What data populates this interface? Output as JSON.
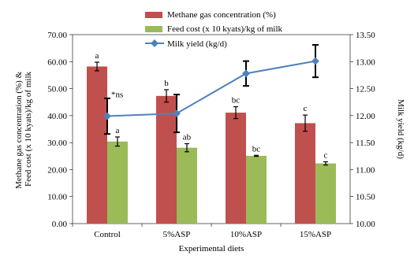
{
  "chart_data": {
    "type": "bar",
    "xlabel": "Experimental diets",
    "ylabel_left": "Methane gas concentration (%) & Feed cost (x 10 kyats)/kg of milk",
    "ylabel_right": "Milk yield (kg/d)",
    "categories": [
      "Control",
      "5%ASP",
      "10%ASP",
      "15%ASP"
    ],
    "ylim_left": [
      0,
      70
    ],
    "yticks_left": [
      "0.00",
      "10.00",
      "20.00",
      "30.00",
      "40.00",
      "50.00",
      "60.00",
      "70.00"
    ],
    "ylim_right": [
      10.0,
      13.5
    ],
    "yticks_right": [
      "10.00",
      "10.50",
      "11.00",
      "11.50",
      "12.00",
      "12.50",
      "13.00",
      "13.50"
    ],
    "grid": false,
    "legend_position": "top",
    "series": [
      {
        "name": "Methane gas concentration (%)",
        "kind": "bar",
        "axis": "left",
        "color": "#c0504d",
        "values": [
          58.2,
          47.3,
          41.1,
          37.2
        ],
        "errors": [
          1.6,
          2.3,
          2.2,
          3.0
        ],
        "letters": [
          "a",
          "b",
          "bc",
          "c"
        ]
      },
      {
        "name": "Feed cost (x 10 kyats)/kg of milk",
        "kind": "bar",
        "axis": "left",
        "color": "#9bbb59",
        "values": [
          30.4,
          28.1,
          25.1,
          22.3
        ],
        "errors": [
          1.7,
          1.5,
          0.2,
          0.6
        ],
        "letters": [
          "a",
          "ab",
          "bc",
          "c"
        ]
      },
      {
        "name": "Milk yield (kg/d)",
        "kind": "line",
        "axis": "right",
        "color": "#4f81bd",
        "values": [
          11.99,
          12.04,
          12.78,
          13.01
        ],
        "errors": [
          0.33,
          0.35,
          0.23,
          0.3
        ]
      }
    ],
    "annotations": [
      {
        "text": "*ns",
        "category": "Control",
        "series": "Milk yield (kg/d)"
      }
    ]
  }
}
